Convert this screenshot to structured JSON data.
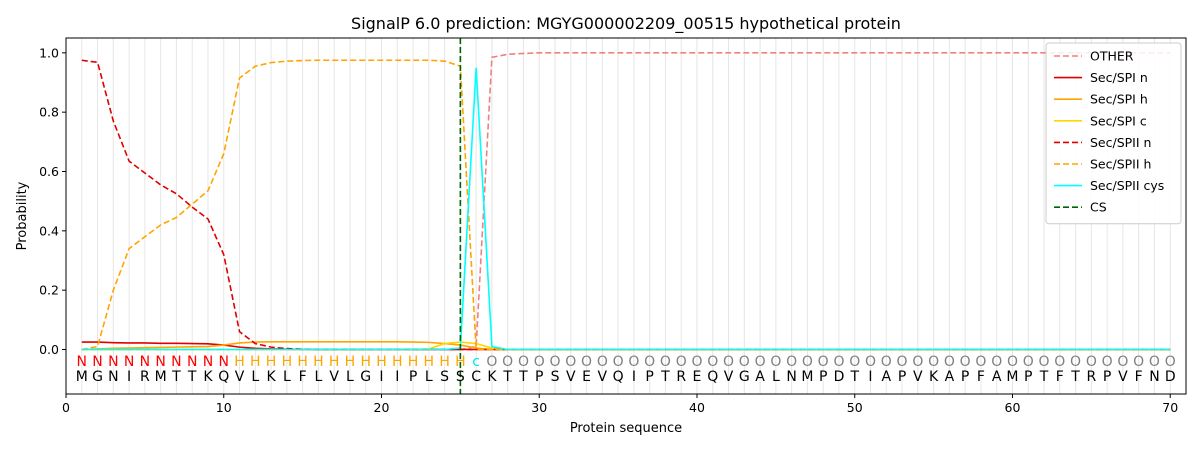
{
  "chart_data": {
    "type": "line",
    "title": "SignalP 6.0 prediction: MGYG000002209_00515 hypothetical protein",
    "xlabel": "Protein sequence",
    "ylabel": "Probability",
    "xlim": [
      0,
      71
    ],
    "ylim": [
      -0.15,
      1.05
    ],
    "x_ticks": [
      0,
      10,
      20,
      30,
      40,
      50,
      60,
      70
    ],
    "y_ticks": [
      0.0,
      0.2,
      0.4,
      0.6,
      0.8,
      1.0
    ],
    "y_tick_labels": [
      "0.0",
      "0.2",
      "0.4",
      "0.6",
      "0.8",
      "1.0"
    ],
    "vertical_grid": "one light gray line per residue position 1-70",
    "legend_position": "top-right",
    "sequence": [
      "M",
      "G",
      "N",
      "I",
      "R",
      "M",
      "T",
      "T",
      "K",
      "Q",
      "V",
      "L",
      "K",
      "L",
      "F",
      "L",
      "V",
      "L",
      "G",
      "I",
      "I",
      "P",
      "L",
      "S",
      "S",
      "C",
      "K",
      "T",
      "T",
      "P",
      "S",
      "V",
      "E",
      "V",
      "Q",
      "I",
      "P",
      "T",
      "R",
      "E",
      "Q",
      "V",
      "G",
      "A",
      "L",
      "N",
      "M",
      "P",
      "D",
      "T",
      "I",
      "A",
      "P",
      "V",
      "K",
      "A",
      "P",
      "F",
      "A",
      "M",
      "P",
      "T",
      "F",
      "T",
      "R",
      "P",
      "V",
      "F",
      "N",
      "D"
    ],
    "region_labels": [
      "N",
      "N",
      "N",
      "N",
      "N",
      "N",
      "N",
      "N",
      "N",
      "N",
      "H",
      "H",
      "H",
      "H",
      "H",
      "H",
      "H",
      "H",
      "H",
      "H",
      "H",
      "H",
      "H",
      "H",
      "H",
      "c",
      "O",
      "O",
      "O",
      "O",
      "O",
      "O",
      "O",
      "O",
      "O",
      "O",
      "O",
      "O",
      "O",
      "O",
      "O",
      "O",
      "O",
      "O",
      "O",
      "O",
      "O",
      "O",
      "O",
      "O",
      "O",
      "O",
      "O",
      "O",
      "O",
      "O",
      "O",
      "O",
      "O",
      "O",
      "O",
      "O",
      "O",
      "O",
      "O",
      "O",
      "O",
      "O",
      "O",
      "O"
    ],
    "region_colors": {
      "N": "#ff0000",
      "H": "#ffa500",
      "c": "#00e5ee",
      "O": "#808080"
    },
    "cleavage_site_x": 25.0,
    "series": [
      {
        "name": "OTHER",
        "color": "#f08080",
        "dash": "dashed",
        "values": [
          0.0,
          0.0,
          0.0,
          0.0,
          0.0,
          0.0,
          0.0,
          0.0,
          0.0,
          0.0,
          0.0,
          0.0,
          0.0,
          0.0,
          0.0,
          0.0,
          0.0,
          0.0,
          0.0,
          0.0,
          0.0,
          0.0,
          0.0,
          0.0,
          0.0,
          0.01,
          0.985,
          0.995,
          0.998,
          1.0,
          1.0,
          1.0,
          1.0,
          1.0,
          1.0,
          1.0,
          1.0,
          1.0,
          1.0,
          1.0,
          1.0,
          1.0,
          1.0,
          1.0,
          1.0,
          1.0,
          1.0,
          1.0,
          1.0,
          1.0,
          1.0,
          1.0,
          1.0,
          1.0,
          1.0,
          1.0,
          1.0,
          1.0,
          1.0,
          1.0,
          1.0,
          1.0,
          1.0,
          1.0,
          1.0,
          1.0,
          1.0,
          1.0,
          1.0,
          1.0
        ]
      },
      {
        "name": "Sec/SPI n",
        "color": "#e00000",
        "dash": "solid",
        "values": [
          0.025,
          0.025,
          0.023,
          0.022,
          0.022,
          0.021,
          0.021,
          0.02,
          0.019,
          0.015,
          0.008,
          0.004,
          0.002,
          0.001,
          0.0,
          0.0,
          0.0,
          0.0,
          0.0,
          0.0,
          0.0,
          0.0,
          0.0,
          0.0,
          0.0,
          0.0,
          0.0,
          0.0,
          0.0,
          0.0,
          0.0,
          0.0,
          0.0,
          0.0,
          0.0,
          0.0,
          0.0,
          0.0,
          0.0,
          0.0,
          0.0,
          0.0,
          0.0,
          0.0,
          0.0,
          0.0,
          0.0,
          0.0,
          0.0,
          0.0,
          0.0,
          0.0,
          0.0,
          0.0,
          0.0,
          0.0,
          0.0,
          0.0,
          0.0,
          0.0,
          0.0,
          0.0,
          0.0,
          0.0,
          0.0,
          0.0,
          0.0,
          0.0,
          0.0,
          0.0
        ]
      },
      {
        "name": "Sec/SPI h",
        "color": "#ffa500",
        "dash": "solid",
        "values": [
          0.0,
          0.002,
          0.004,
          0.005,
          0.006,
          0.007,
          0.008,
          0.009,
          0.01,
          0.015,
          0.022,
          0.025,
          0.026,
          0.026,
          0.026,
          0.026,
          0.026,
          0.026,
          0.026,
          0.026,
          0.026,
          0.025,
          0.024,
          0.02,
          0.015,
          0.005,
          0.0,
          0.0,
          0.0,
          0.0,
          0.0,
          0.0,
          0.0,
          0.0,
          0.0,
          0.0,
          0.0,
          0.0,
          0.0,
          0.0,
          0.0,
          0.0,
          0.0,
          0.0,
          0.0,
          0.0,
          0.0,
          0.0,
          0.0,
          0.0,
          0.0,
          0.0,
          0.0,
          0.0,
          0.0,
          0.0,
          0.0,
          0.0,
          0.0,
          0.0,
          0.0,
          0.0,
          0.0,
          0.0,
          0.0,
          0.0,
          0.0,
          0.0,
          0.0,
          0.0
        ]
      },
      {
        "name": "Sec/SPI c",
        "color": "#ffd700",
        "dash": "solid",
        "values": [
          0.0,
          0.0,
          0.0,
          0.0,
          0.0,
          0.0,
          0.0,
          0.0,
          0.0,
          0.0,
          0.0,
          0.0,
          0.0,
          0.0,
          0.0,
          0.0,
          0.0,
          0.0,
          0.0,
          0.0,
          0.0,
          0.0,
          0.002,
          0.02,
          0.025,
          0.02,
          0.005,
          0.0,
          0.0,
          0.0,
          0.0,
          0.0,
          0.0,
          0.0,
          0.0,
          0.0,
          0.0,
          0.0,
          0.0,
          0.0,
          0.0,
          0.0,
          0.0,
          0.0,
          0.0,
          0.0,
          0.0,
          0.0,
          0.0,
          0.0,
          0.0,
          0.0,
          0.0,
          0.0,
          0.0,
          0.0,
          0.0,
          0.0,
          0.0,
          0.0,
          0.0,
          0.0,
          0.0,
          0.0,
          0.0,
          0.0,
          0.0,
          0.0,
          0.0,
          0.0
        ]
      },
      {
        "name": "Sec/SPII n",
        "color": "#e00000",
        "dash": "dashed",
        "values": [
          0.975,
          0.968,
          0.77,
          0.635,
          0.595,
          0.555,
          0.525,
          0.48,
          0.44,
          0.32,
          0.06,
          0.02,
          0.008,
          0.003,
          0.001,
          0.0,
          0.0,
          0.0,
          0.0,
          0.0,
          0.0,
          0.0,
          0.0,
          0.0,
          0.0,
          0.0,
          0.0,
          0.0,
          0.0,
          0.0,
          0.0,
          0.0,
          0.0,
          0.0,
          0.0,
          0.0,
          0.0,
          0.0,
          0.0,
          0.0,
          0.0,
          0.0,
          0.0,
          0.0,
          0.0,
          0.0,
          0.0,
          0.0,
          0.0,
          0.0,
          0.0,
          0.0,
          0.0,
          0.0,
          0.0,
          0.0,
          0.0,
          0.0,
          0.0,
          0.0,
          0.0,
          0.0,
          0.0,
          0.0,
          0.0,
          0.0,
          0.0,
          0.0,
          0.0,
          0.0
        ]
      },
      {
        "name": "Sec/SPII h",
        "color": "#ffa500",
        "dash": "dashed",
        "values": [
          0.0,
          0.01,
          0.2,
          0.34,
          0.38,
          0.42,
          0.445,
          0.49,
          0.535,
          0.66,
          0.915,
          0.955,
          0.967,
          0.972,
          0.974,
          0.975,
          0.975,
          0.975,
          0.975,
          0.975,
          0.975,
          0.975,
          0.975,
          0.972,
          0.955,
          0.0,
          0.0,
          0.0,
          0.0,
          0.0,
          0.0,
          0.0,
          0.0,
          0.0,
          0.0,
          0.0,
          0.0,
          0.0,
          0.0,
          0.0,
          0.0,
          0.0,
          0.0,
          0.0,
          0.0,
          0.0,
          0.0,
          0.0,
          0.0,
          0.0,
          0.0,
          0.0,
          0.0,
          0.0,
          0.0,
          0.0,
          0.0,
          0.0,
          0.0,
          0.0,
          0.0,
          0.0,
          0.0,
          0.0,
          0.0,
          0.0,
          0.0,
          0.0,
          0.0,
          0.0
        ]
      },
      {
        "name": "Sec/SPII cys",
        "color": "#00ffff",
        "dash": "solid",
        "values": [
          0.0,
          0.0,
          0.0,
          0.0,
          0.0,
          0.0,
          0.0,
          0.0,
          0.0,
          0.0,
          0.0,
          0.0,
          0.0,
          0.0,
          0.0,
          0.0,
          0.0,
          0.0,
          0.0,
          0.0,
          0.0,
          0.0,
          0.0,
          0.0,
          0.005,
          0.95,
          0.01,
          0.0,
          0.0,
          0.0,
          0.0,
          0.0,
          0.0,
          0.0,
          0.0,
          0.0,
          0.0,
          0.0,
          0.0,
          0.0,
          0.0,
          0.0,
          0.0,
          0.0,
          0.0,
          0.0,
          0.0,
          0.0,
          0.0,
          0.0,
          0.0,
          0.0,
          0.0,
          0.0,
          0.0,
          0.0,
          0.0,
          0.0,
          0.0,
          0.0,
          0.0,
          0.0,
          0.0,
          0.0,
          0.0,
          0.0,
          0.0,
          0.0,
          0.0,
          0.0
        ]
      }
    ],
    "legend": [
      {
        "name": "OTHER",
        "color": "#f08080",
        "dash": "dashed"
      },
      {
        "name": "Sec/SPI n",
        "color": "#e00000",
        "dash": "solid"
      },
      {
        "name": "Sec/SPI h",
        "color": "#ffa500",
        "dash": "solid"
      },
      {
        "name": "Sec/SPI c",
        "color": "#ffd700",
        "dash": "solid"
      },
      {
        "name": "Sec/SPII n",
        "color": "#e00000",
        "dash": "dashed"
      },
      {
        "name": "Sec/SPII h",
        "color": "#ffa500",
        "dash": "dashed"
      },
      {
        "name": "Sec/SPII cys",
        "color": "#00ffff",
        "dash": "solid"
      },
      {
        "name": "CS",
        "color": "#006400",
        "dash": "dashed"
      }
    ]
  }
}
